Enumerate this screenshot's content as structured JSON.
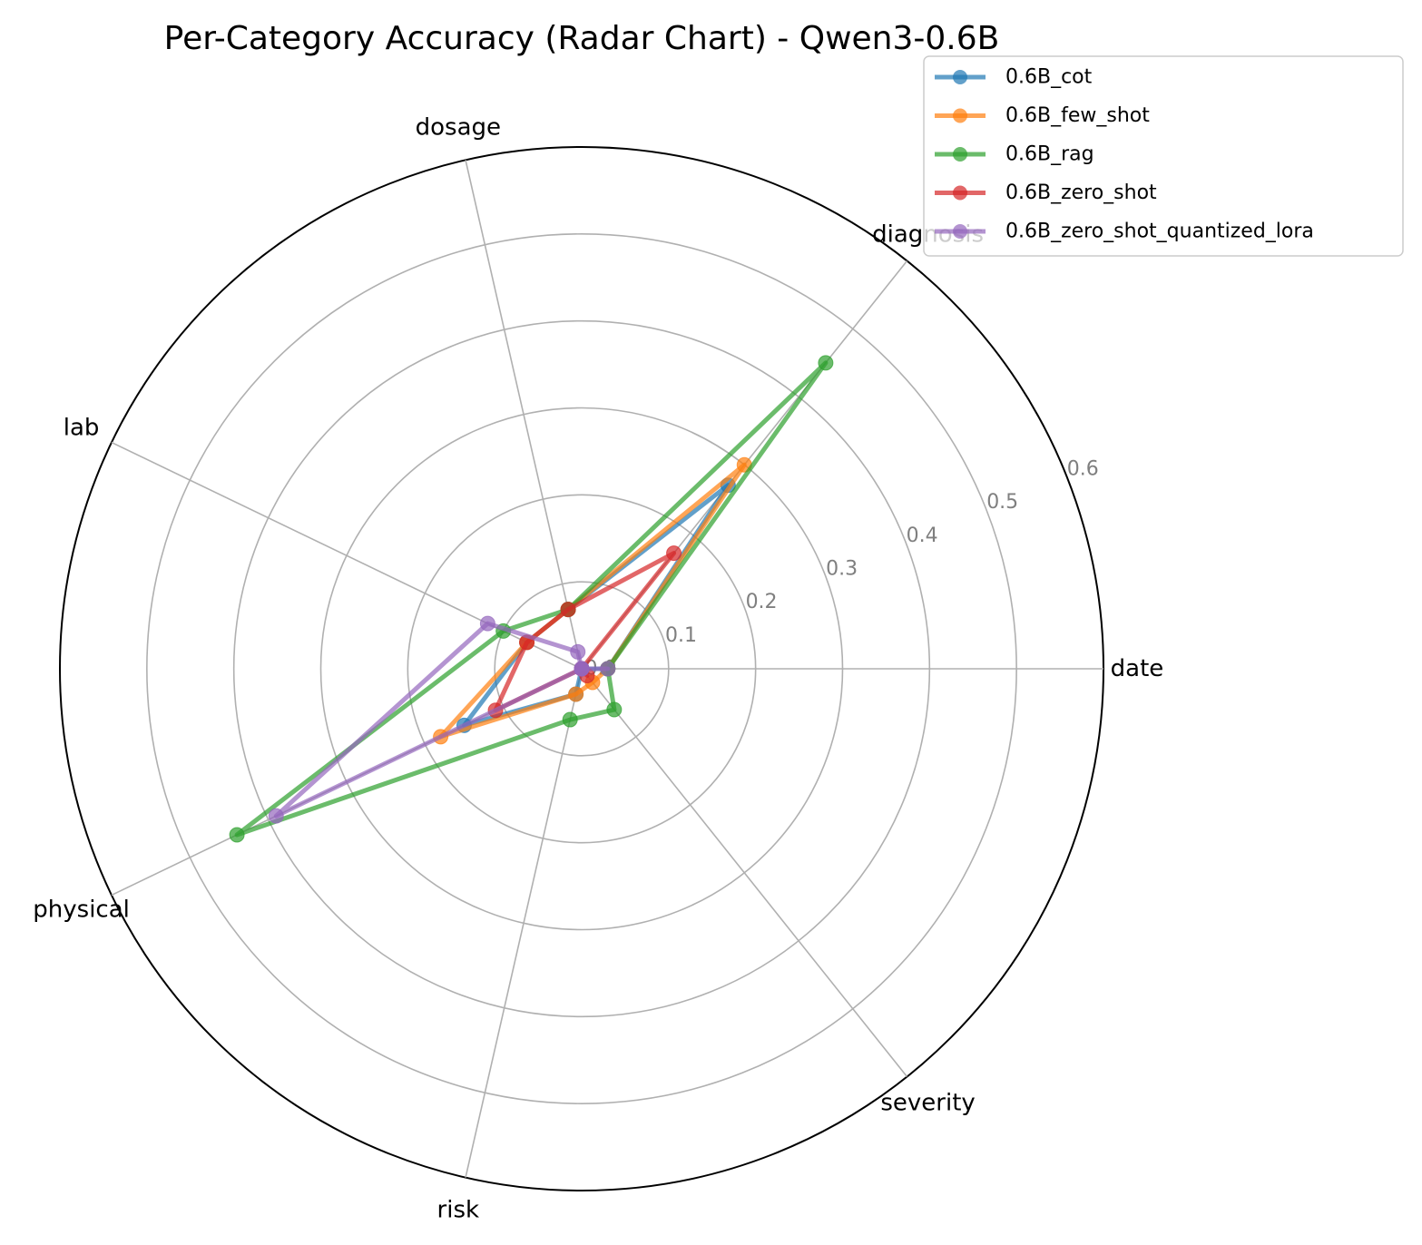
{
  "chart_data": {
    "type": "radar",
    "title": "Per-Category Accuracy (Radar Chart) - Qwen3-0.6B",
    "categories": [
      "date",
      "diagnosis",
      "dosage",
      "lab",
      "physical",
      "risk",
      "severity"
    ],
    "rlim": [
      0,
      0.6
    ],
    "rticks": [
      "0.0",
      "0.1",
      "0.2",
      "0.3",
      "0.4",
      "0.5",
      "0.6"
    ],
    "grid": true,
    "legend_position": "top-right",
    "series": [
      {
        "name": "0.6B_cot",
        "color": "#1f77b4",
        "values": [
          0.03,
          0.27,
          0.07,
          0.07,
          0.15,
          0.03,
          0.0
        ]
      },
      {
        "name": "0.6B_few_shot",
        "color": "#ff7f0e",
        "values": [
          0.03,
          0.3,
          0.07,
          0.07,
          0.18,
          0.03,
          0.02
        ]
      },
      {
        "name": "0.6B_rag",
        "color": "#2ca02c",
        "values": [
          0.03,
          0.45,
          0.07,
          0.1,
          0.44,
          0.06,
          0.06
        ]
      },
      {
        "name": "0.6B_zero_shot",
        "color": "#d62728",
        "values": [
          0.0,
          0.17,
          0.07,
          0.07,
          0.11,
          0.0,
          0.01
        ]
      },
      {
        "name": "0.6B_zero_shot_quantized_lora",
        "color": "#9467bd",
        "values": [
          0.03,
          0.0,
          0.02,
          0.12,
          0.39,
          0.0,
          0.0
        ]
      }
    ]
  }
}
